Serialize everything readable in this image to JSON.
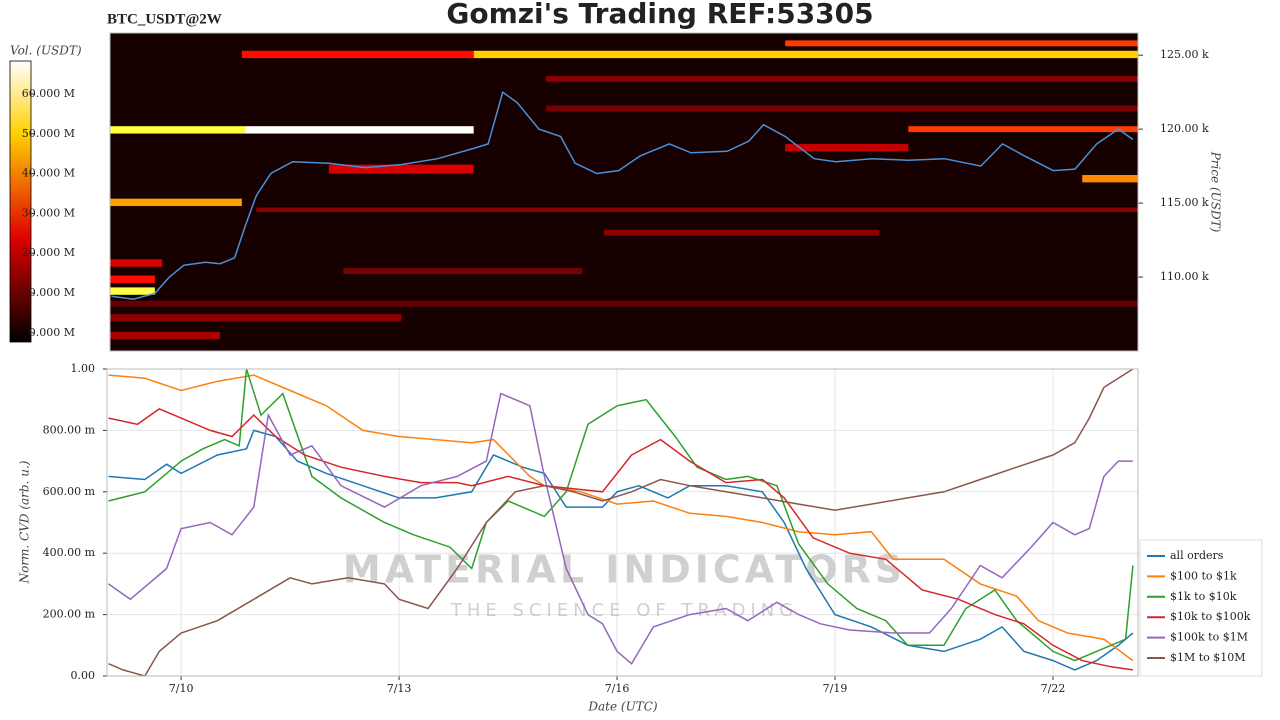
{
  "chart_data": [
    {
      "type": "heatmap",
      "title": "Gomzi's Trading REF:53305",
      "subtitle": "BTC_USDT@2W",
      "ylabel": "Price (USDT)",
      "xlim": [
        8.98,
        23.17
      ],
      "ylim": [
        105000,
        126500
      ],
      "yticks": [
        {
          "value": 110000,
          "label": "110.00 k"
        },
        {
          "value": 115000,
          "label": "115.00 k"
        },
        {
          "value": 120000,
          "label": "120.00 k"
        },
        {
          "value": 125000,
          "label": "125.00 k"
        }
      ],
      "colorbar": {
        "label": "Vol. (USDT)",
        "lim": [
          -2300000,
          68300000
        ],
        "ticks": [
          {
            "value": 0,
            "label": "0.000 M"
          },
          {
            "value": 10000000,
            "label": "10.000 M"
          },
          {
            "value": 20000000,
            "label": "20.000 M"
          },
          {
            "value": 30000000,
            "label": "30.000 M"
          },
          {
            "value": 40000000,
            "label": "40.000 M"
          },
          {
            "value": 50000000,
            "label": "50.000 M"
          },
          {
            "value": 60000000,
            "label": "60.000 M"
          }
        ]
      },
      "bands": [
        {
          "price_low": 119700,
          "price_high": 120200,
          "x_start": 8.98,
          "x_end": 10.85,
          "value": 55000000
        },
        {
          "price_low": 119700,
          "price_high": 120200,
          "x_start": 10.85,
          "x_end": 14.0,
          "value": 68000000
        },
        {
          "price_low": 124800,
          "price_high": 125300,
          "x_start": 14.0,
          "x_end": 23.17,
          "value": 45000000
        },
        {
          "price_low": 124800,
          "price_high": 125300,
          "x_start": 10.8,
          "x_end": 14.0,
          "value": 25000000
        },
        {
          "price_low": 125600,
          "price_high": 126000,
          "x_start": 18.3,
          "x_end": 23.17,
          "value": 30000000
        },
        {
          "price_low": 114800,
          "price_high": 115300,
          "x_start": 8.98,
          "x_end": 10.8,
          "value": 40000000
        },
        {
          "price_low": 108800,
          "price_high": 109300,
          "x_start": 8.98,
          "x_end": 9.6,
          "value": 55000000
        },
        {
          "price_low": 109600,
          "price_high": 110100,
          "x_start": 8.98,
          "x_end": 9.6,
          "value": 25000000
        },
        {
          "price_low": 110700,
          "price_high": 111200,
          "x_start": 8.98,
          "x_end": 9.7,
          "value": 20000000
        },
        {
          "price_low": 116400,
          "price_high": 116900,
          "x_start": 22.4,
          "x_end": 23.17,
          "value": 38000000
        },
        {
          "price_low": 119800,
          "price_high": 120200,
          "x_start": 20.0,
          "x_end": 23.17,
          "value": 30000000
        },
        {
          "price_low": 112800,
          "price_high": 113200,
          "x_start": 15.8,
          "x_end": 19.6,
          "value": 12000000
        },
        {
          "price_low": 110200,
          "price_high": 110600,
          "x_start": 12.2,
          "x_end": 15.5,
          "value": 10000000
        },
        {
          "price_low": 107000,
          "price_high": 107500,
          "x_start": 8.98,
          "x_end": 13.0,
          "value": 12000000
        },
        {
          "price_low": 105800,
          "price_high": 106300,
          "x_start": 8.98,
          "x_end": 10.5,
          "value": 15000000
        },
        {
          "price_low": 117000,
          "price_high": 117600,
          "x_start": 12.0,
          "x_end": 14.0,
          "value": 20000000
        },
        {
          "price_low": 114400,
          "price_high": 114700,
          "x_start": 11.0,
          "x_end": 23.17,
          "value": 12000000
        },
        {
          "price_low": 121200,
          "price_high": 121600,
          "x_start": 15.0,
          "x_end": 23.17,
          "value": 10000000
        },
        {
          "price_low": 123200,
          "price_high": 123600,
          "x_start": 15.0,
          "x_end": 23.17,
          "value": 12000000
        },
        {
          "price_low": 108000,
          "price_high": 108400,
          "x_start": 8.98,
          "x_end": 23.17,
          "value": 8000000
        },
        {
          "price_low": 118500,
          "price_high": 119000,
          "x_start": 18.3,
          "x_end": 20.0,
          "value": 18000000
        }
      ],
      "price": {
        "color": "#4a90d9",
        "x": [
          9.0,
          9.3,
          9.6,
          9.8,
          10.0,
          10.3,
          10.5,
          10.7,
          10.85,
          11.0,
          11.2,
          11.5,
          12.0,
          12.5,
          13.0,
          13.5,
          14.0,
          14.2,
          14.4,
          14.6,
          14.9,
          15.2,
          15.4,
          15.7,
          16.0,
          16.3,
          16.7,
          17.0,
          17.5,
          17.8,
          18.0,
          18.3,
          18.7,
          19.0,
          19.5,
          20.0,
          20.5,
          21.0,
          21.3,
          21.6,
          22.0,
          22.3,
          22.6,
          22.9,
          23.1
        ],
        "values": [
          108700,
          108500,
          108900,
          110000,
          110800,
          111000,
          110900,
          111300,
          113500,
          115500,
          117000,
          117800,
          117700,
          117400,
          117600,
          118000,
          118700,
          119000,
          122500,
          121800,
          120000,
          119500,
          117700,
          117000,
          117200,
          118200,
          119000,
          118400,
          118500,
          119200,
          120300,
          119500,
          118000,
          117800,
          118000,
          117900,
          118000,
          117500,
          119000,
          118200,
          117200,
          117300,
          119000,
          120000,
          119300
        ]
      }
    },
    {
      "type": "line",
      "xlabel": "Date (UTC)",
      "ylabel": "Norm. CVD (arb. u.)",
      "xlim": [
        8.98,
        23.17
      ],
      "ylim": [
        0,
        1
      ],
      "xticks": [
        {
          "value": 10,
          "label": "7/10"
        },
        {
          "value": 13,
          "label": "7/13"
        },
        {
          "value": 16,
          "label": "7/16"
        },
        {
          "value": 19,
          "label": "7/19"
        },
        {
          "value": 22,
          "label": "7/22"
        }
      ],
      "yticks": [
        {
          "value": 0,
          "label": "0.00"
        },
        {
          "value": 0.2,
          "label": "200.00 m"
        },
        {
          "value": 0.4,
          "label": "400.00 m"
        },
        {
          "value": 0.6,
          "label": "600.00 m"
        },
        {
          "value": 0.8,
          "label": "800.00 m"
        },
        {
          "value": 1,
          "label": "1.00"
        }
      ],
      "grid": true,
      "legend": "right",
      "watermark": {
        "title": "MATERIAL INDICATORS",
        "subtitle": "THE SCIENCE OF TRADING"
      },
      "series": [
        {
          "name": "all orders",
          "color": "#1f77b4",
          "x": [
            9.0,
            9.5,
            9.8,
            10.0,
            10.5,
            10.9,
            11.0,
            11.3,
            11.6,
            12.0,
            12.5,
            13.0,
            13.5,
            14.0,
            14.3,
            14.7,
            15.0,
            15.3,
            15.8,
            16.0,
            16.3,
            16.7,
            17.0,
            17.5,
            18.0,
            18.3,
            18.6,
            19.0,
            19.5,
            20.0,
            20.5,
            21.0,
            21.3,
            21.6,
            22.0,
            22.3,
            22.6,
            22.9,
            23.1
          ],
          "values": [
            0.65,
            0.64,
            0.69,
            0.66,
            0.72,
            0.74,
            0.8,
            0.78,
            0.7,
            0.66,
            0.62,
            0.58,
            0.58,
            0.6,
            0.72,
            0.68,
            0.66,
            0.55,
            0.55,
            0.6,
            0.62,
            0.58,
            0.62,
            0.62,
            0.6,
            0.5,
            0.35,
            0.2,
            0.16,
            0.1,
            0.08,
            0.12,
            0.16,
            0.08,
            0.05,
            0.02,
            0.05,
            0.1,
            0.14
          ]
        },
        {
          "name": "$100 to $1k",
          "color": "#ff7f0e",
          "x": [
            9.0,
            9.5,
            10.0,
            10.5,
            11.0,
            11.5,
            12.0,
            12.5,
            13.0,
            13.5,
            14.0,
            14.3,
            14.8,
            15.0,
            15.5,
            16.0,
            16.5,
            17.0,
            17.5,
            18.0,
            18.5,
            19.0,
            19.5,
            19.8,
            20.5,
            21.0,
            21.5,
            21.8,
            22.2,
            22.7,
            23.1
          ],
          "values": [
            0.98,
            0.97,
            0.93,
            0.96,
            0.98,
            0.93,
            0.88,
            0.8,
            0.78,
            0.77,
            0.76,
            0.77,
            0.65,
            0.62,
            0.6,
            0.56,
            0.57,
            0.53,
            0.52,
            0.5,
            0.47,
            0.46,
            0.47,
            0.38,
            0.38,
            0.3,
            0.26,
            0.18,
            0.14,
            0.12,
            0.05
          ]
        },
        {
          "name": "$1k to $10k",
          "color": "#2ca02c",
          "x": [
            9.0,
            9.5,
            9.8,
            10.0,
            10.3,
            10.6,
            10.8,
            10.9,
            11.1,
            11.4,
            11.8,
            12.2,
            12.8,
            13.2,
            13.7,
            14.0,
            14.2,
            14.5,
            15.0,
            15.3,
            15.6,
            16.0,
            16.4,
            16.8,
            17.1,
            17.5,
            17.8,
            18.2,
            18.5,
            18.9,
            19.3,
            19.7,
            20.0,
            20.5,
            20.8,
            21.2,
            21.5,
            22.0,
            22.3,
            22.8,
            23.0,
            23.1
          ],
          "values": [
            0.57,
            0.6,
            0.66,
            0.7,
            0.74,
            0.77,
            0.75,
            1.0,
            0.85,
            0.92,
            0.65,
            0.58,
            0.5,
            0.46,
            0.42,
            0.35,
            0.5,
            0.57,
            0.52,
            0.6,
            0.82,
            0.88,
            0.9,
            0.78,
            0.68,
            0.64,
            0.65,
            0.62,
            0.43,
            0.3,
            0.22,
            0.18,
            0.1,
            0.1,
            0.22,
            0.28,
            0.18,
            0.08,
            0.05,
            0.1,
            0.12,
            0.36
          ]
        },
        {
          "name": "$10k to $100k",
          "color": "#d62728",
          "x": [
            9.0,
            9.4,
            9.7,
            10.0,
            10.4,
            10.7,
            11.0,
            11.3,
            11.7,
            12.2,
            12.8,
            13.3,
            13.8,
            14.0,
            14.5,
            15.0,
            15.4,
            15.8,
            16.2,
            16.6,
            17.0,
            17.5,
            18.0,
            18.3,
            18.7,
            19.2,
            19.7,
            20.2,
            20.7,
            21.2,
            21.6,
            22.0,
            22.4,
            22.8,
            23.1
          ],
          "values": [
            0.84,
            0.82,
            0.87,
            0.84,
            0.8,
            0.78,
            0.85,
            0.78,
            0.72,
            0.68,
            0.65,
            0.63,
            0.63,
            0.62,
            0.65,
            0.62,
            0.61,
            0.6,
            0.72,
            0.77,
            0.7,
            0.63,
            0.64,
            0.58,
            0.45,
            0.4,
            0.38,
            0.28,
            0.25,
            0.2,
            0.17,
            0.1,
            0.05,
            0.03,
            0.02
          ]
        },
        {
          "name": "$100k to $1M",
          "color": "#9467bd",
          "x": [
            9.0,
            9.3,
            9.8,
            10.0,
            10.4,
            10.7,
            11.0,
            11.2,
            11.5,
            11.8,
            12.2,
            12.8,
            13.3,
            13.8,
            14.2,
            14.4,
            14.8,
            15.0,
            15.3,
            15.6,
            15.8,
            16.0,
            16.2,
            16.5,
            17.0,
            17.5,
            17.8,
            18.2,
            18.5,
            18.8,
            19.2,
            19.8,
            20.3,
            20.6,
            21.0,
            21.3,
            21.7,
            22.0,
            22.3,
            22.5,
            22.7,
            22.9,
            23.1
          ],
          "values": [
            0.3,
            0.25,
            0.35,
            0.48,
            0.5,
            0.46,
            0.55,
            0.85,
            0.72,
            0.75,
            0.62,
            0.55,
            0.62,
            0.65,
            0.7,
            0.92,
            0.88,
            0.65,
            0.35,
            0.2,
            0.17,
            0.08,
            0.04,
            0.16,
            0.2,
            0.22,
            0.18,
            0.24,
            0.2,
            0.17,
            0.15,
            0.14,
            0.14,
            0.22,
            0.36,
            0.32,
            0.42,
            0.5,
            0.46,
            0.48,
            0.65,
            0.7,
            0.7
          ]
        },
        {
          "name": "$1M to $10M",
          "color": "#8c564b",
          "x": [
            9.0,
            9.2,
            9.5,
            9.7,
            10.0,
            10.5,
            11.0,
            11.5,
            11.8,
            12.3,
            12.8,
            13.0,
            13.4,
            13.8,
            14.2,
            14.6,
            15.0,
            15.4,
            15.8,
            16.2,
            16.6,
            17.0,
            17.5,
            18.0,
            18.5,
            19.0,
            19.5,
            20.0,
            20.5,
            21.0,
            21.5,
            22.0,
            22.3,
            22.5,
            22.7,
            23.1
          ],
          "values": [
            0.04,
            0.02,
            0.0,
            0.08,
            0.14,
            0.18,
            0.25,
            0.32,
            0.3,
            0.32,
            0.3,
            0.25,
            0.22,
            0.35,
            0.5,
            0.6,
            0.62,
            0.6,
            0.57,
            0.6,
            0.64,
            0.62,
            0.6,
            0.58,
            0.56,
            0.54,
            0.56,
            0.58,
            0.6,
            0.64,
            0.68,
            0.72,
            0.76,
            0.84,
            0.94,
            1.0
          ]
        }
      ]
    }
  ]
}
